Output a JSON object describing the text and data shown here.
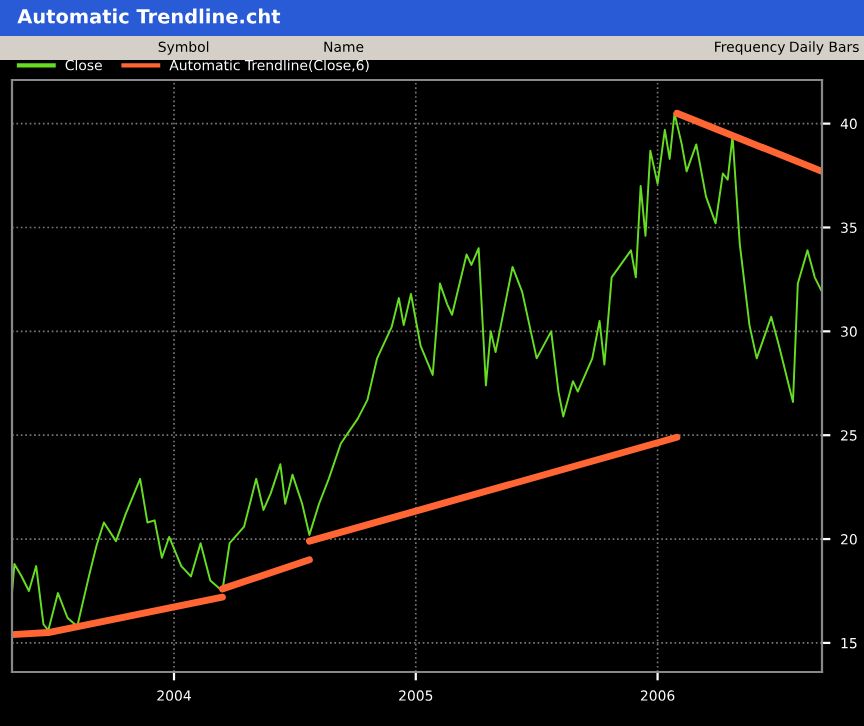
{
  "chart_data": {
    "type": "line",
    "title": "Automatic Trendline.cht",
    "annotations": [
      "Symbol",
      "Name",
      "Frequency",
      "Daily Bars"
    ],
    "xlim": [
      2003.33,
      2006.68
    ],
    "xticks": [
      2004,
      2005,
      2006
    ],
    "ylim": [
      13.6,
      42.1
    ],
    "yticks": [
      15,
      20,
      25,
      30,
      35,
      40
    ],
    "grid": true,
    "legend": "top left",
    "line_style": "solid",
    "series": [
      {
        "name": "Close",
        "color": "#66dd22",
        "x": [
          2003.33,
          2003.34,
          2003.37,
          2003.4,
          2003.43,
          2003.46,
          2003.48,
          2003.52,
          2003.56,
          2003.6,
          2003.65,
          2003.68,
          2003.71,
          2003.76,
          2003.8,
          2003.86,
          2003.89,
          2003.92,
          2003.95,
          2003.98,
          2004.03,
          2004.07,
          2004.11,
          2004.15,
          2004.2,
          2004.23,
          2004.29,
          2004.34,
          2004.37,
          2004.4,
          2004.44,
          2004.46,
          2004.49,
          2004.53,
          2004.56,
          2004.6,
          2004.64,
          2004.69,
          2004.76,
          2004.8,
          2004.84,
          2004.86,
          2004.9,
          2004.93,
          2004.95,
          2004.98,
          2005.02,
          2005.07,
          2005.1,
          2005.13,
          2005.15,
          2005.21,
          2005.23,
          2005.26,
          2005.29,
          2005.31,
          2005.33,
          2005.4,
          2005.44,
          2005.5,
          2005.56,
          2005.59,
          2005.61,
          2005.65,
          2005.67,
          2005.73,
          2005.76,
          2005.78,
          2005.81,
          2005.89,
          2005.91,
          2005.93,
          2005.95,
          2005.97,
          2006.0,
          2006.03,
          2006.05,
          2006.07,
          2006.1,
          2006.12,
          2006.16,
          2006.2,
          2006.24,
          2006.27,
          2006.29,
          2006.31,
          2006.34,
          2006.38,
          2006.41,
          2006.44,
          2006.47,
          2006.5,
          2006.56,
          2006.58,
          2006.62,
          2006.65,
          2006.68
        ],
        "values": [
          17.4,
          18.8,
          18.2,
          17.5,
          18.7,
          15.9,
          15.6,
          17.4,
          16.2,
          15.8,
          18.3,
          19.7,
          20.8,
          19.9,
          21.2,
          22.9,
          20.8,
          20.9,
          19.1,
          20.1,
          18.7,
          18.2,
          19.8,
          18.0,
          17.5,
          19.8,
          20.6,
          22.9,
          21.4,
          22.2,
          23.6,
          21.7,
          23.1,
          21.7,
          20.2,
          21.7,
          22.9,
          24.6,
          25.8,
          26.7,
          28.7,
          29.2,
          30.2,
          31.6,
          30.3,
          31.8,
          29.3,
          27.9,
          32.3,
          31.3,
          30.8,
          33.7,
          33.2,
          34.0,
          27.4,
          30.0,
          29.0,
          33.1,
          31.9,
          28.7,
          30.0,
          27.1,
          25.9,
          27.6,
          27.1,
          28.7,
          30.5,
          28.4,
          32.6,
          33.9,
          32.6,
          37.0,
          34.6,
          38.7,
          37.1,
          39.7,
          38.3,
          40.5,
          39.0,
          37.7,
          39.0,
          36.5,
          35.2,
          37.6,
          37.3,
          39.4,
          34.2,
          30.3,
          28.7,
          29.7,
          30.7,
          29.4,
          26.6,
          32.3,
          33.9,
          32.6,
          31.9
        ]
      },
      {
        "name": "Automatic Trendline(Close,6)",
        "color": "#ff6633",
        "x": [
          2003.33,
          2003.48,
          2004.2
        ],
        "values": [
          15.4,
          15.5,
          17.2
        ]
      },
      {
        "color": "#ff6633",
        "x": [
          2004.2,
          2004.56
        ],
        "values": [
          17.6,
          19.0
        ]
      },
      {
        "color": "#ff6633",
        "x": [
          2004.56,
          2006.08
        ],
        "values": [
          19.9,
          24.9
        ]
      },
      {
        "color": "#ff6633",
        "x": [
          2006.08,
          2006.68
        ],
        "values": [
          40.5,
          37.7
        ]
      }
    ]
  }
}
